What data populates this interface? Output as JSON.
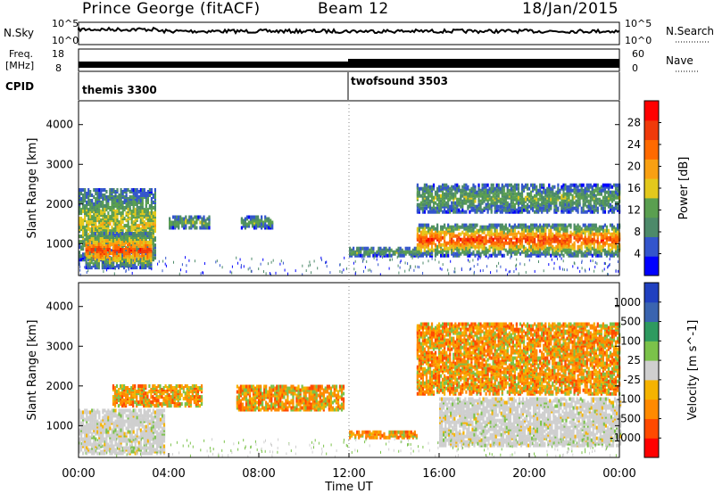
{
  "header": {
    "station": "Prince George (fitACF)",
    "beam": "Beam 12",
    "date": "18/Jan/2015"
  },
  "colors": {
    "power": [
      "#0000ff",
      "#3355cc",
      "#4d8a6a",
      "#5a9f50",
      "#e3c81c",
      "#f9a012",
      "#ff6a00",
      "#f03a0a",
      "#ff0000"
    ],
    "velocity": [
      "#2040c0",
      "#3a64b0",
      "#2e9a60",
      "#7bc24a",
      "#cfcfcf",
      "#f5b300",
      "#ff8a00",
      "#ff4a00",
      "#ff0000"
    ]
  },
  "top_panels": {
    "nsky": {
      "label": "N.Sky",
      "ticks": [
        "10^5",
        "10^0"
      ]
    },
    "nsearch": {
      "label": "N.Search",
      "ticks": [
        "10^5",
        "10^0"
      ]
    },
    "freq": {
      "label_line1": "Freq.",
      "label_line2": "[MHz]",
      "ticks": [
        "18",
        "8"
      ]
    },
    "nave": {
      "label": "Nave",
      "ticks": [
        "60",
        "0"
      ]
    },
    "cpid": {
      "label": "CPID",
      "modes": [
        "themis 3300",
        "twofsound 3503"
      ]
    }
  },
  "chart_data": [
    {
      "type": "heatmap",
      "title": "",
      "ylabel": "Slant Range [km]",
      "ylim": [
        200,
        4600
      ],
      "y_ticks": [
        "4000",
        "3000",
        "2000",
        "1000"
      ],
      "colorbar": {
        "label": "Power [dB]",
        "range": [
          0,
          32
        ],
        "ticks": [
          "28",
          "24",
          "20",
          "16",
          "12",
          "8",
          "4"
        ]
      },
      "x_ticks": [
        "00:00",
        "04:00",
        "08:00",
        "12:00",
        "16:00",
        "20:00",
        "00:00"
      ],
      "regions": [
        {
          "t": [
            0.0,
            3.4
          ],
          "r": [
            600,
            2400
          ],
          "level": "mid"
        },
        {
          "t": [
            0.3,
            3.2
          ],
          "r": [
            400,
            1300
          ],
          "level": "high"
        },
        {
          "t": [
            4.0,
            5.8
          ],
          "r": [
            1400,
            1700
          ],
          "level": "low"
        },
        {
          "t": [
            7.2,
            8.6
          ],
          "r": [
            1400,
            1700
          ],
          "level": "low"
        },
        {
          "t": [
            12.0,
            15.0
          ],
          "r": [
            700,
            900
          ],
          "level": "low"
        },
        {
          "t": [
            15.0,
            24.0
          ],
          "r": [
            700,
            1500
          ],
          "level": "high"
        },
        {
          "t": [
            15.0,
            24.0
          ],
          "r": [
            1800,
            2500
          ],
          "level": "low"
        }
      ]
    },
    {
      "type": "heatmap",
      "title": "",
      "ylabel": "Slant Range [km]",
      "ylim": [
        200,
        4600
      ],
      "y_ticks": [
        "4000",
        "3000",
        "2000",
        "1000"
      ],
      "colorbar": {
        "label": "Velocity [m s^-1]",
        "range": [
          -1200,
          1200
        ],
        "ticks": [
          "1000",
          "500",
          "100",
          "25",
          "-25",
          "-100",
          "-500",
          "-1000"
        ]
      },
      "x_ticks": [
        "00:00",
        "04:00",
        "08:00",
        "12:00",
        "16:00",
        "20:00",
        "00:00"
      ],
      "regions": [
        {
          "t": [
            0.0,
            3.8
          ],
          "r": [
            300,
            1400
          ],
          "vel": "near-zero"
        },
        {
          "t": [
            1.5,
            5.5
          ],
          "r": [
            1500,
            2000
          ],
          "vel": "away"
        },
        {
          "t": [
            7.0,
            11.8
          ],
          "r": [
            1400,
            2000
          ],
          "vel": "away"
        },
        {
          "t": [
            12.0,
            15.0
          ],
          "r": [
            700,
            850
          ],
          "vel": "away"
        },
        {
          "t": [
            16.0,
            24.0
          ],
          "r": [
            500,
            1700
          ],
          "vel": "near-zero"
        },
        {
          "t": [
            15.0,
            24.0
          ],
          "r": [
            1800,
            3600
          ],
          "vel": "away"
        }
      ]
    }
  ],
  "xlabel": "Time UT"
}
